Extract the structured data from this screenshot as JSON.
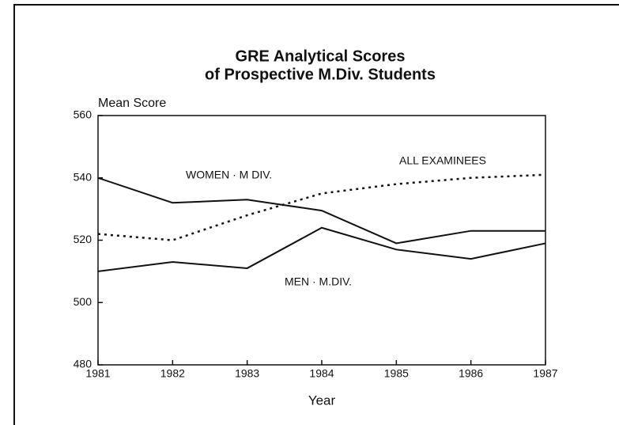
{
  "chart_data": {
    "type": "line",
    "title": [
      "GRE Analytical Scores",
      "of Prospective M.Div. Students"
    ],
    "ylabel": "Mean Score",
    "xlabel": "Year",
    "x": [
      1981,
      1982,
      1983,
      1984,
      1985,
      1986,
      1987
    ],
    "xlim": [
      1981,
      1987
    ],
    "xticks": [
      1981,
      1982,
      1983,
      1984,
      1985,
      1986,
      1987
    ],
    "ylim": [
      480,
      560
    ],
    "yticks": [
      480,
      500,
      520,
      540,
      560
    ],
    "series": [
      {
        "name": "WOMEN · M DIV.",
        "color": "#111111",
        "style": "solid",
        "values": [
          540,
          532,
          533,
          529.5,
          519,
          523,
          523
        ]
      },
      {
        "name": "MEN · M.DIV.",
        "color": "#111111",
        "style": "solid",
        "values": [
          510,
          513,
          511,
          524,
          517,
          514,
          519
        ]
      },
      {
        "name": "ALL EXAMINEES",
        "color": "#111111",
        "style": "dotted",
        "values": [
          522,
          520,
          528,
          535,
          538,
          540,
          541
        ]
      }
    ]
  }
}
